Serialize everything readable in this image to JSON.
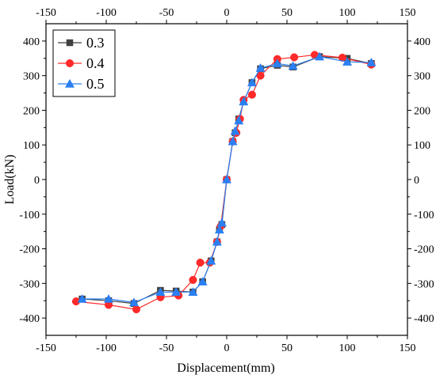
{
  "chart_data": {
    "type": "line",
    "title": "",
    "xlabel": "Displacement(mm)",
    "ylabel": "Load(kN)",
    "xlim": [
      -150,
      150
    ],
    "ylim": [
      -450,
      450
    ],
    "xticks": [
      -150,
      -100,
      -50,
      0,
      50,
      100,
      150
    ],
    "yticks": [
      -400,
      -300,
      -200,
      -100,
      0,
      100,
      200,
      300,
      400
    ],
    "xtick_labels": [
      "-150",
      "-100",
      "-50",
      "0",
      "50",
      "100",
      "150"
    ],
    "ytick_labels": [
      "-400",
      "-300",
      "-200",
      "-100",
      "0",
      "100",
      "200",
      "300",
      "400"
    ],
    "grid": false,
    "legend_position": "top-left",
    "series": [
      {
        "name": "0.3",
        "color": "#404040",
        "marker": "square",
        "x": [
          -120,
          -98,
          -77,
          -55,
          -42,
          -28,
          -20,
          -13,
          -8,
          -6,
          -4,
          0,
          5,
          7,
          10,
          14,
          21,
          28,
          42,
          55,
          77,
          100,
          120
        ],
        "y": [
          -345,
          -350,
          -358,
          -320,
          -322,
          -325,
          -295,
          -235,
          -180,
          -145,
          -130,
          0,
          110,
          135,
          175,
          225,
          280,
          320,
          330,
          325,
          355,
          350,
          335
        ]
      },
      {
        "name": "0.4",
        "color": "#ff2a2a",
        "marker": "circle",
        "x": [
          -125,
          -98,
          -75,
          -55,
          -40,
          -28,
          -22,
          -14,
          -8,
          -5,
          0,
          5,
          8,
          11,
          14,
          21,
          28,
          42,
          56,
          73,
          96,
          120
        ],
        "y": [
          -352,
          -362,
          -375,
          -340,
          -335,
          -290,
          -240,
          -240,
          -180,
          -135,
          0,
          110,
          135,
          175,
          230,
          245,
          300,
          348,
          353,
          360,
          352,
          332
        ]
      },
      {
        "name": "0.5",
        "color": "#2a7ff2",
        "marker": "triangle",
        "x": [
          -120,
          -98,
          -77,
          -55,
          -42,
          -28,
          -20,
          -13,
          -8,
          -6,
          -4,
          0,
          5,
          7,
          10,
          14,
          21,
          28,
          42,
          55,
          77,
          100,
          120
        ],
        "y": [
          -345,
          -345,
          -355,
          -325,
          -325,
          -325,
          -295,
          -235,
          -180,
          -145,
          -125,
          0,
          110,
          140,
          170,
          225,
          280,
          322,
          335,
          328,
          355,
          340,
          338
        ]
      }
    ]
  }
}
